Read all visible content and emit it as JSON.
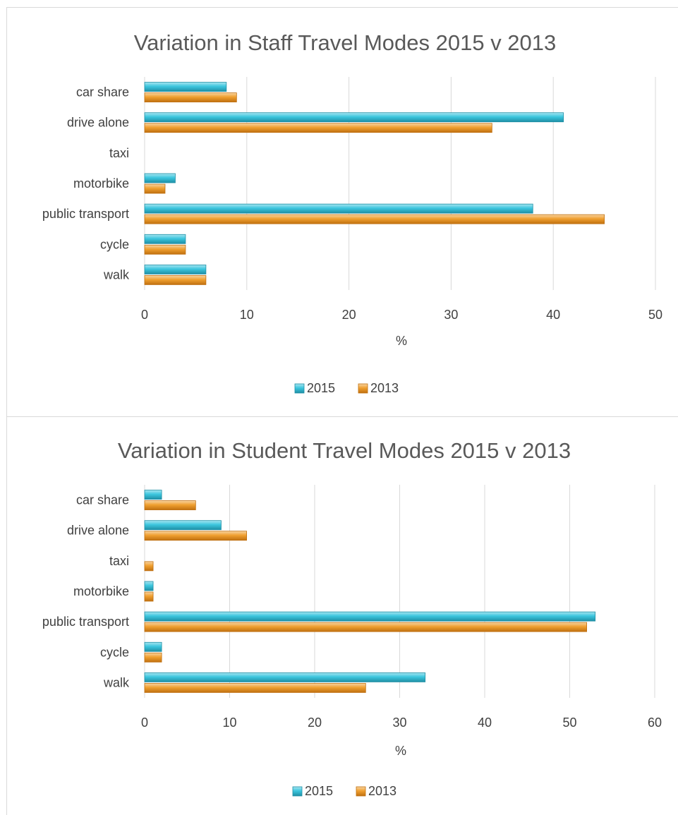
{
  "colors": {
    "series_2015": "#3cc6de",
    "series_2015_dark": "#1f8fa5",
    "series_2013": "#f0a030",
    "series_2013_dark": "#c07010",
    "grid": "#d9d9d9",
    "text": "#404040"
  },
  "chart_data": [
    {
      "type": "bar",
      "orientation": "horizontal",
      "title": "Variation in Staff Travel Modes 2015 v 2013",
      "xlabel": "%",
      "ylabel": "",
      "categories": [
        "car share",
        "drive alone",
        "taxi",
        "motorbike",
        "public transport",
        "cycle",
        "walk"
      ],
      "series": [
        {
          "name": "2015",
          "values": [
            8,
            41,
            0,
            3,
            38,
            4,
            6
          ]
        },
        {
          "name": "2013",
          "values": [
            9,
            34,
            0,
            2,
            45,
            4,
            6
          ]
        }
      ],
      "xlim": [
        0,
        50
      ],
      "ticks": [
        0,
        10,
        20,
        30,
        40,
        50
      ],
      "grid": true,
      "legend": "bottom"
    },
    {
      "type": "bar",
      "orientation": "horizontal",
      "title": "Variation in Student Travel Modes 2015 v 2013",
      "xlabel": "%",
      "ylabel": "",
      "categories": [
        "car share",
        "drive alone",
        "taxi",
        "motorbike",
        "public transport",
        "cycle",
        "walk"
      ],
      "series": [
        {
          "name": "2015",
          "values": [
            2,
            9,
            0,
            1,
            53,
            2,
            33
          ]
        },
        {
          "name": "2013",
          "values": [
            6,
            12,
            1,
            1,
            52,
            2,
            26
          ]
        }
      ],
      "xlim": [
        0,
        60
      ],
      "ticks": [
        0,
        10,
        20,
        30,
        40,
        50,
        60
      ],
      "grid": true,
      "legend": "bottom"
    }
  ]
}
